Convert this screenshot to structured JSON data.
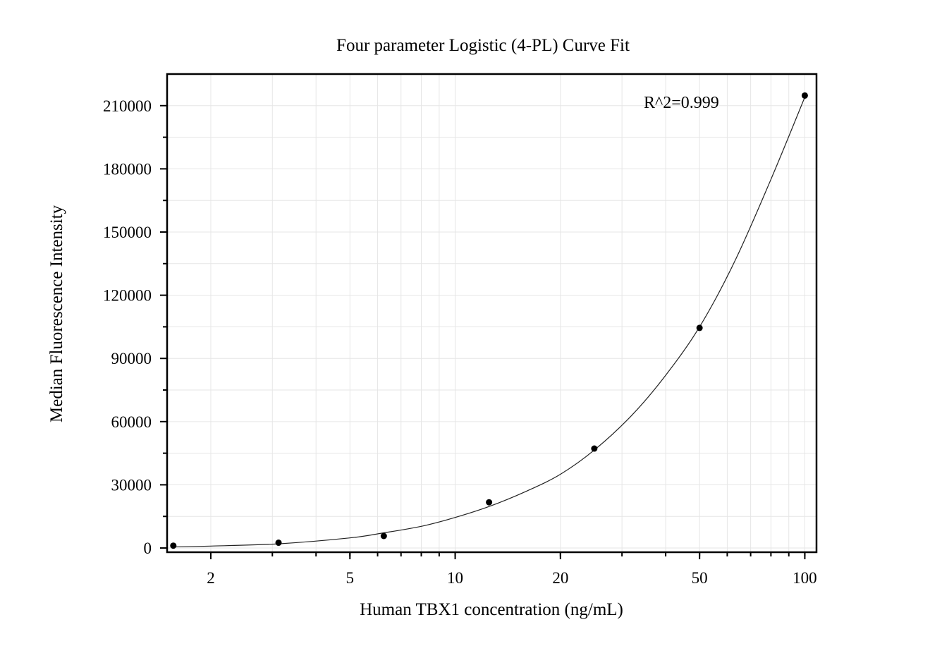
{
  "chart_data": {
    "type": "scatter",
    "title": "Four parameter Logistic (4-PL) Curve Fit",
    "xlabel": "Human TBX1 concentration (ng/mL)",
    "ylabel": "Median Fluorescence Intensity",
    "x_scale": "log",
    "xlim": [
      1.5,
      108
    ],
    "ylim": [
      -2000,
      225000
    ],
    "x_ticks": [
      2,
      5,
      10,
      20,
      50,
      100
    ],
    "x_tick_labels": [
      "2",
      "5",
      "10",
      "20",
      "50",
      "100"
    ],
    "y_ticks": [
      0,
      30000,
      60000,
      90000,
      120000,
      150000,
      180000,
      210000
    ],
    "y_tick_labels": [
      "0",
      "30000",
      "60000",
      "90000",
      "120000",
      "150000",
      "180000",
      "210000"
    ],
    "grid": true,
    "annotation": "R^2=0.999",
    "series": [
      {
        "points": [
          {
            "x": 1.5625,
            "y": 1100
          },
          {
            "x": 3.125,
            "y": 2500
          },
          {
            "x": 6.25,
            "y": 5700
          },
          {
            "x": 12.5,
            "y": 21700
          },
          {
            "x": 25,
            "y": 47200
          },
          {
            "x": 50,
            "y": 104500
          },
          {
            "x": 100,
            "y": 214800
          }
        ]
      }
    ],
    "fit_curve": [
      {
        "x": 1.5625,
        "y": 500
      },
      {
        "x": 2,
        "y": 900
      },
      {
        "x": 3.125,
        "y": 2000
      },
      {
        "x": 5,
        "y": 4800
      },
      {
        "x": 6.25,
        "y": 7200
      },
      {
        "x": 8,
        "y": 10300
      },
      {
        "x": 10,
        "y": 14500
      },
      {
        "x": 12.5,
        "y": 19700
      },
      {
        "x": 16,
        "y": 27000
      },
      {
        "x": 20,
        "y": 35000
      },
      {
        "x": 25,
        "y": 46500
      },
      {
        "x": 32,
        "y": 63000
      },
      {
        "x": 40,
        "y": 82000
      },
      {
        "x": 50,
        "y": 105000
      },
      {
        "x": 63,
        "y": 136000
      },
      {
        "x": 80,
        "y": 175000
      },
      {
        "x": 100,
        "y": 214000
      }
    ]
  }
}
